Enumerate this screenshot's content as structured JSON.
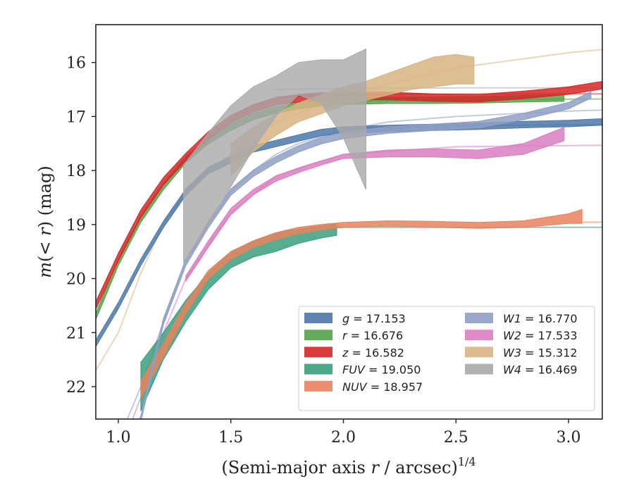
{
  "chart_data": {
    "type": "line",
    "xlabel": "(Semi-major axis r / arcsec)",
    "xlabel_parts": {
      "prefix": "(Semi-major axis ",
      "var": "r",
      "suffix": " / arcsec)",
      "exponent": "1/4"
    },
    "ylabel": "m(< r) (mag)",
    "ylabel_parts": {
      "var": "m",
      "inner": "(< ",
      "inner_var": "r",
      "close": ")",
      "unit": " (mag)"
    },
    "xlim": [
      0.9,
      3.15
    ],
    "ylim": [
      22.6,
      15.3
    ],
    "y_inverted": true,
    "xticks": [
      "1.0",
      "1.5",
      "2.0",
      "2.5",
      "3.0"
    ],
    "xtick_values": [
      1.0,
      1.5,
      2.0,
      2.5,
      3.0
    ],
    "yticks": [
      "16",
      "17",
      "18",
      "19",
      "20",
      "21",
      "22"
    ],
    "ytick_values": [
      16,
      17,
      18,
      19,
      20,
      21,
      22
    ],
    "grid": false,
    "legend_placement": "lower-right",
    "series": [
      {
        "key": "g",
        "label_var": "g",
        "label_value": "= 17.153",
        "color": "#4c78a8",
        "band_x": [
          0.9,
          1.0,
          1.1,
          1.2,
          1.3,
          1.4,
          1.5,
          1.6,
          1.7,
          1.8,
          1.9,
          2.0,
          2.2,
          2.4,
          2.6,
          2.8,
          3.0,
          3.15
        ],
        "band_y": [
          21.2,
          20.5,
          19.7,
          19.0,
          18.4,
          18.0,
          17.8,
          17.6,
          17.5,
          17.4,
          17.3,
          17.25,
          17.22,
          17.2,
          17.18,
          17.15,
          17.13,
          17.1
        ],
        "band_w": 0.06,
        "model_x": [
          2.0,
          2.5,
          3.0,
          3.15
        ],
        "model_y": [
          17.22,
          17.17,
          17.155,
          17.153
        ]
      },
      {
        "key": "r",
        "label_var": "r",
        "label_value": "= 16.676",
        "color": "#54a24b",
        "band_x": [
          0.9,
          1.0,
          1.1,
          1.2,
          1.3,
          1.4,
          1.5,
          1.6,
          1.7,
          1.8,
          1.9,
          2.0,
          2.2,
          2.4,
          2.6,
          2.8,
          2.98
        ],
        "band_y": [
          20.7,
          19.7,
          18.9,
          18.3,
          17.8,
          17.45,
          17.2,
          17.0,
          16.88,
          16.8,
          16.75,
          16.72,
          16.7,
          16.7,
          16.69,
          16.67,
          16.66
        ],
        "band_w": 0.06,
        "model_x": [
          2.0,
          2.5,
          3.0,
          3.15
        ],
        "model_y": [
          16.72,
          16.69,
          16.678,
          16.676
        ]
      },
      {
        "key": "z",
        "label_var": "z",
        "label_value": "= 16.582",
        "color": "#d62728",
        "band_x": [
          0.9,
          1.0,
          1.1,
          1.2,
          1.3,
          1.4,
          1.5,
          1.6,
          1.7,
          1.8,
          1.9,
          2.0,
          2.2,
          2.4,
          2.6,
          2.8,
          3.0,
          3.15
        ],
        "band_y": [
          20.5,
          19.6,
          18.8,
          18.2,
          17.75,
          17.35,
          17.05,
          16.85,
          16.72,
          16.66,
          16.63,
          16.62,
          16.62,
          16.65,
          16.66,
          16.6,
          16.52,
          16.42
        ],
        "band_w": 0.07,
        "model_x": [
          1.7,
          2.0,
          2.5,
          3.0,
          3.15
        ],
        "model_y": [
          16.64,
          16.6,
          16.585,
          16.582,
          16.582
        ]
      },
      {
        "key": "FUV",
        "label_var": "FUV",
        "label_value": "= 19.050",
        "color": "#3a9e7e",
        "band_x": [
          1.1,
          1.2,
          1.3,
          1.4,
          1.5,
          1.6,
          1.7,
          1.8,
          1.9,
          1.97
        ],
        "band_lo": [
          21.55,
          21.0,
          20.4,
          19.9,
          19.5,
          19.3,
          19.15,
          19.08,
          19.02,
          18.98
        ],
        "band_hi": [
          22.45,
          21.5,
          20.8,
          20.2,
          19.8,
          19.6,
          19.5,
          19.35,
          19.25,
          19.2
        ],
        "model_x": [
          1.97,
          2.2,
          2.5,
          3.0,
          3.15
        ],
        "model_y": [
          19.05,
          19.05,
          19.05,
          19.05,
          19.05
        ]
      },
      {
        "key": "NUV",
        "label_var": "NUV",
        "label_value": "= 18.957",
        "color": "#e8825e",
        "band_x": [
          1.1,
          1.2,
          1.3,
          1.4,
          1.5,
          1.6,
          1.7,
          1.8,
          1.9,
          2.0,
          2.2,
          2.4,
          2.6,
          2.8,
          3.0,
          3.06
        ],
        "band_lo": [
          21.9,
          21.2,
          20.45,
          19.85,
          19.5,
          19.3,
          19.15,
          19.05,
          19.0,
          18.96,
          18.93,
          18.94,
          18.96,
          18.93,
          18.8,
          18.72
        ],
        "band_hi": [
          22.2,
          21.45,
          20.65,
          20.0,
          19.65,
          19.42,
          19.28,
          19.17,
          19.1,
          19.05,
          19.03,
          19.05,
          19.07,
          19.05,
          18.98,
          18.98
        ],
        "model_x": [
          3.06,
          3.15
        ],
        "model_y": [
          18.957,
          18.957
        ]
      },
      {
        "key": "W1",
        "label_var": "W1",
        "label_value": "= 16.770",
        "color": "#8f9fc4",
        "band_x": [
          1.0,
          1.1,
          1.2,
          1.3,
          1.4,
          1.5,
          1.6,
          1.7,
          1.8,
          1.9,
          2.0,
          2.2,
          2.4,
          2.6,
          2.8,
          3.0,
          3.1
        ],
        "band_y": [
          23.5,
          22.6,
          20.8,
          19.7,
          19.0,
          18.4,
          18.05,
          17.8,
          17.6,
          17.45,
          17.35,
          17.25,
          17.2,
          17.15,
          17.0,
          16.8,
          16.6
        ],
        "band_w": 0.06,
        "model_x": [
          0.9,
          1.0,
          1.1,
          1.2,
          1.3,
          1.4,
          1.5,
          1.6,
          1.7,
          1.8,
          2.0,
          2.2,
          2.5,
          3.0,
          3.15
        ],
        "model_y": [
          23.5,
          23.0,
          22.0,
          20.8,
          19.7,
          19.0,
          18.4,
          18.0,
          17.7,
          17.5,
          17.25,
          17.1,
          17.0,
          16.9,
          16.88
        ]
      },
      {
        "key": "W2",
        "label_var": "W2",
        "label_value": "= 17.533",
        "color": "#d97ec0",
        "band_x": [
          1.3,
          1.4,
          1.5,
          1.6,
          1.7,
          1.8,
          1.9,
          2.0,
          2.2,
          2.4,
          2.6,
          2.8,
          2.98
        ],
        "band_lo": [
          19.95,
          19.3,
          18.7,
          18.35,
          18.1,
          17.95,
          17.82,
          17.7,
          17.62,
          17.6,
          17.62,
          17.5,
          17.2
        ],
        "band_hi": [
          20.05,
          19.42,
          18.82,
          18.45,
          18.2,
          18.04,
          17.9,
          17.78,
          17.75,
          17.75,
          17.78,
          17.7,
          17.45
        ],
        "model_x": [
          0.9,
          1.0,
          1.1,
          1.2,
          1.3,
          1.5,
          1.7,
          2.0,
          2.5,
          3.0,
          3.15
        ],
        "model_y": [
          24.0,
          23.3,
          22.2,
          21.0,
          20.0,
          18.8,
          18.1,
          17.7,
          17.56,
          17.54,
          17.533
        ]
      },
      {
        "key": "W3",
        "label_var": "W3",
        "label_value": "= 15.312",
        "color": "#d8b483",
        "band_x": [
          1.5,
          1.6,
          1.7,
          1.8,
          1.9,
          2.0,
          2.1,
          2.2,
          2.3,
          2.4,
          2.5,
          2.58
        ],
        "band_lo": [
          17.5,
          17.2,
          16.95,
          16.75,
          16.6,
          16.45,
          16.35,
          16.2,
          16.05,
          15.9,
          15.85,
          15.9
        ],
        "band_hi": [
          18.1,
          17.65,
          17.35,
          17.1,
          16.95,
          16.8,
          16.7,
          16.6,
          16.5,
          16.45,
          16.4,
          16.4
        ],
        "model_x": [
          0.9,
          1.0,
          1.1,
          1.2,
          1.3,
          1.4,
          1.5,
          1.7,
          2.0,
          2.5,
          3.0,
          3.15
        ],
        "model_y": [
          21.7,
          21.0,
          19.9,
          19.0,
          18.4,
          18.0,
          17.7,
          17.1,
          16.6,
          16.1,
          15.82,
          15.76
        ]
      },
      {
        "key": "W4",
        "label_var": "W4",
        "label_value": "= 16.469",
        "color": "#a9a9a9",
        "band_x": [
          1.29,
          1.4,
          1.5,
          1.6,
          1.7,
          1.8,
          1.9,
          2.0,
          2.1
        ],
        "band_lo": [
          17.9,
          17.3,
          16.8,
          16.45,
          16.25,
          16.0,
          15.95,
          15.95,
          15.75
        ],
        "band_hi": [
          19.7,
          19.0,
          18.3,
          17.6,
          17.0,
          16.6,
          16.75,
          17.4,
          18.35
        ],
        "model_x": [
          1.7,
          2.0,
          2.5,
          3.0,
          3.15
        ],
        "model_y": [
          16.5,
          16.48,
          16.47,
          16.469,
          16.469
        ]
      }
    ]
  }
}
